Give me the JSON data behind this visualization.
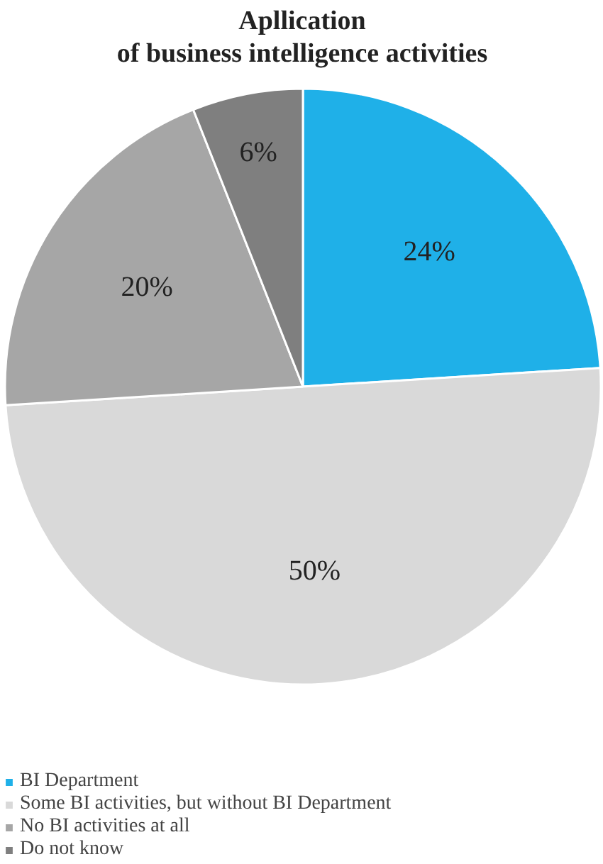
{
  "chart_data": {
    "type": "pie",
    "title": "Apllication\nof business intelligence activities",
    "categories": [
      "BI Department",
      "Some BI activities, but without BI Department",
      "No BI activities at all",
      "Do not know"
    ],
    "values": [
      24,
      50,
      20,
      6
    ],
    "colors": [
      "#1fb0e8",
      "#d9d9d9",
      "#a6a6a6",
      "#7f7f7f"
    ],
    "value_labels": [
      "24%",
      "50%",
      "20%",
      "6%"
    ],
    "legend": "bottom"
  }
}
